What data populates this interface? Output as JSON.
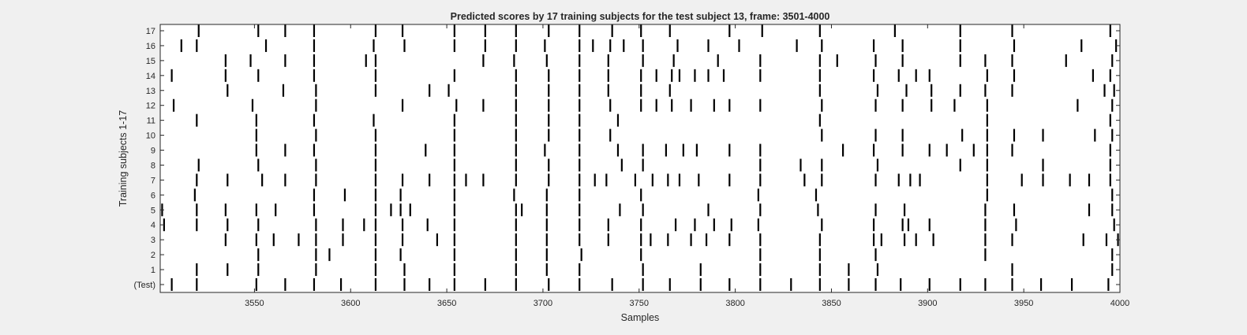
{
  "chart_data": {
    "type": "raster",
    "title": "Predicted scores by 17 training subjects for the test subject 13, frame: 3501-4000",
    "xlabel": "Samples",
    "ylabel": "Training subjects 1-17",
    "xlim": [
      3501,
      4000
    ],
    "x_ticks": [
      3550,
      3600,
      3650,
      3700,
      3750,
      3800,
      3850,
      3900,
      3950,
      4000
    ],
    "y_tick_labels": [
      "(Test)",
      "1",
      "2",
      "3",
      "4",
      "5",
      "6",
      "7",
      "8",
      "9",
      "10",
      "11",
      "12",
      "13",
      "14",
      "15",
      "16",
      "17"
    ],
    "grid": false,
    "colors": {
      "spike": "#000000",
      "axes_bg": "#ffffff",
      "figure_bg": "#f0f0f0",
      "axis": "#262626"
    },
    "rows": [
      {
        "label": "(Test)",
        "samples": [
          3507,
          3520,
          3551,
          3566,
          3581,
          3595,
          3613,
          3628,
          3641,
          3654,
          3670,
          3686,
          3703,
          3719,
          3736,
          3752,
          3766,
          3782,
          3797,
          3813,
          3829,
          3844,
          3859,
          3873,
          3886,
          3901,
          3917,
          3930,
          3944,
          3959,
          3975,
          3994
        ]
      },
      {
        "label": "1",
        "samples": [
          3520,
          3536,
          3552,
          3582,
          3613,
          3628,
          3654,
          3686,
          3702,
          3719,
          3752,
          3782,
          3813,
          3844,
          3859,
          3874,
          3944,
          3996
        ]
      },
      {
        "label": "2",
        "samples": [
          3552,
          3582,
          3589,
          3613,
          3626,
          3654,
          3686,
          3702,
          3720,
          3751,
          3813,
          3844,
          3873,
          3930,
          3996
        ]
      },
      {
        "label": "3",
        "samples": [
          3535,
          3551,
          3560,
          3573,
          3582,
          3596,
          3613,
          3627,
          3645,
          3654,
          3686,
          3702,
          3719,
          3734,
          3751,
          3756,
          3765,
          3777,
          3785,
          3797,
          3813,
          3844,
          3872,
          3876,
          3888,
          3894,
          3903,
          3930,
          3944,
          3981,
          3993,
          3999
        ]
      },
      {
        "label": "4",
        "samples": [
          3503,
          3520,
          3536,
          3552,
          3582,
          3596,
          3607,
          3613,
          3627,
          3640,
          3654,
          3686,
          3702,
          3719,
          3734,
          3751,
          3769,
          3779,
          3789,
          3798,
          3812,
          3845,
          3872,
          3887,
          3890,
          3901,
          3930,
          3946,
          3997
        ]
      },
      {
        "label": "5",
        "samples": [
          3502,
          3520,
          3535,
          3551,
          3561,
          3581,
          3613,
          3621,
          3626,
          3631,
          3654,
          3686,
          3689,
          3702,
          3719,
          3740,
          3752,
          3786,
          3813,
          3843,
          3873,
          3888,
          3930,
          3945,
          3984,
          3996
        ]
      },
      {
        "label": "6",
        "samples": [
          3519,
          3581,
          3597,
          3613,
          3626,
          3654,
          3685,
          3702,
          3719,
          3751,
          3812,
          3842,
          3931,
          3996
        ]
      },
      {
        "label": "7",
        "samples": [
          3520,
          3536,
          3554,
          3566,
          3582,
          3613,
          3627,
          3641,
          3654,
          3660,
          3669,
          3686,
          3703,
          3719,
          3727,
          3733,
          3748,
          3757,
          3765,
          3771,
          3781,
          3797,
          3813,
          3836,
          3845,
          3873,
          3885,
          3891,
          3896,
          3931,
          3949,
          3960,
          3974,
          3984,
          3995
        ]
      },
      {
        "label": "8",
        "samples": [
          3521,
          3552,
          3582,
          3613,
          3654,
          3686,
          3703,
          3719,
          3741,
          3752,
          3813,
          3834,
          3845,
          3874,
          3917,
          3931,
          3960,
          3995
        ]
      },
      {
        "label": "9",
        "samples": [
          3551,
          3566,
          3581,
          3613,
          3639,
          3654,
          3686,
          3701,
          3719,
          3739,
          3752,
          3764,
          3773,
          3780,
          3797,
          3813,
          3856,
          3872,
          3887,
          3901,
          3910,
          3924,
          3931,
          3944,
          3995
        ]
      },
      {
        "label": "10",
        "samples": [
          3551,
          3582,
          3613,
          3654,
          3686,
          3703,
          3719,
          3735,
          3845,
          3873,
          3887,
          3918,
          3931,
          3945,
          3960,
          3987,
          3996
        ]
      },
      {
        "label": "11",
        "samples": [
          3520,
          3551,
          3581,
          3612,
          3654,
          3686,
          3703,
          3719,
          3739,
          3844,
          3931,
          3995
        ]
      },
      {
        "label": "12",
        "samples": [
          3508,
          3549,
          3582,
          3627,
          3655,
          3669,
          3686,
          3703,
          3719,
          3735,
          3751,
          3759,
          3767,
          3777,
          3789,
          3797,
          3813,
          3845,
          3873,
          3887,
          3902,
          3914,
          3931,
          3978,
          3996
        ]
      },
      {
        "label": "13",
        "samples": [
          3536,
          3565,
          3582,
          3613,
          3641,
          3651,
          3686,
          3703,
          3719,
          3734,
          3751,
          3766,
          3844,
          3874,
          3889,
          3902,
          3917,
          3930,
          3944,
          3992,
          3997
        ]
      },
      {
        "label": "14",
        "samples": [
          3507,
          3535,
          3552,
          3581,
          3613,
          3654,
          3686,
          3703,
          3719,
          3734,
          3751,
          3759,
          3767,
          3771,
          3779,
          3786,
          3794,
          3813,
          3844,
          3872,
          3885,
          3894,
          3901,
          3931,
          3945,
          3986,
          3995
        ]
      },
      {
        "label": "15",
        "samples": [
          3535,
          3548,
          3566,
          3581,
          3608,
          3613,
          3669,
          3685,
          3702,
          3719,
          3734,
          3752,
          3768,
          3791,
          3813,
          3844,
          3853,
          3873,
          3887,
          3917,
          3930,
          3944,
          3972,
          3996
        ]
      },
      {
        "label": "16",
        "samples": [
          3512,
          3520,
          3556,
          3581,
          3612,
          3628,
          3654,
          3670,
          3686,
          3701,
          3719,
          3726,
          3735,
          3742,
          3752,
          3770,
          3786,
          3802,
          3832,
          3845,
          3872,
          3887,
          3917,
          3945,
          3980,
          3998
        ]
      },
      {
        "label": "17",
        "samples": [
          3521,
          3552,
          3566,
          3581,
          3613,
          3627,
          3654,
          3670,
          3686,
          3703,
          3719,
          3736,
          3751,
          3766,
          3797,
          3814,
          3844,
          3883,
          3917,
          3944,
          3995
        ]
      }
    ]
  }
}
